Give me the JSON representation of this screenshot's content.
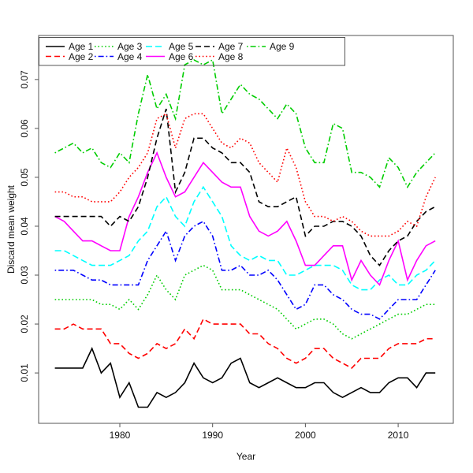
{
  "chart_data": {
    "type": "line",
    "title": "",
    "xlabel": "Year",
    "ylabel": "Discard mean weight",
    "grid": false,
    "legend_position": "top-left",
    "legend_border": true,
    "legend_columns": [
      [
        0,
        1
      ],
      [
        2,
        3
      ],
      [
        4,
        5
      ],
      [
        6,
        7
      ],
      [
        8
      ]
    ],
    "x_ticks": [
      1980,
      1990,
      2000,
      2010
    ],
    "x_tick_labels": [
      "1980",
      "1990",
      "2000",
      "2010"
    ],
    "y_ticks": [
      0.01,
      0.02,
      0.03,
      0.04,
      0.05,
      0.06,
      0.07
    ],
    "y_tick_labels": [
      "0.01",
      "0.02",
      "0.03",
      "0.04",
      "0.05",
      "0.06",
      "0.07"
    ],
    "xlim": [
      1971.25,
      2015.94
    ],
    "ylim": [
      -0.0003,
      0.079
    ],
    "x": [
      1973,
      1974,
      1975,
      1976,
      1977,
      1978,
      1979,
      1980,
      1981,
      1982,
      1983,
      1984,
      1985,
      1986,
      1987,
      1988,
      1989,
      1990,
      1991,
      1992,
      1993,
      1994,
      1995,
      1996,
      1997,
      1998,
      1999,
      2000,
      2001,
      2002,
      2003,
      2004,
      2005,
      2006,
      2007,
      2008,
      2009,
      2010,
      2011,
      2012,
      2013,
      2014
    ],
    "series": [
      {
        "name": "Age 1",
        "color": "#000000",
        "linestyle": "solid",
        "values": [
          0.011,
          0.011,
          0.011,
          0.011,
          0.015,
          0.01,
          0.012,
          0.005,
          0.008,
          0.003,
          0.003,
          0.006,
          0.005,
          0.006,
          0.008,
          0.012,
          0.009,
          0.008,
          0.009,
          0.012,
          0.013,
          0.008,
          0.007,
          0.008,
          0.009,
          0.008,
          0.007,
          0.007,
          0.008,
          0.008,
          0.006,
          0.005,
          0.006,
          0.007,
          0.006,
          0.006,
          0.008,
          0.009,
          0.009,
          0.007,
          0.01,
          0.01
        ]
      },
      {
        "name": "Age 2",
        "color": "#FF0000",
        "linestyle": "dashed",
        "values": [
          0.019,
          0.019,
          0.02,
          0.019,
          0.019,
          0.019,
          0.016,
          0.016,
          0.014,
          0.013,
          0.014,
          0.016,
          0.015,
          0.016,
          0.019,
          0.017,
          0.021,
          0.02,
          0.02,
          0.02,
          0.02,
          0.018,
          0.018,
          0.016,
          0.015,
          0.013,
          0.012,
          0.013,
          0.015,
          0.015,
          0.013,
          0.012,
          0.011,
          0.013,
          0.013,
          0.013,
          0.015,
          0.016,
          0.016,
          0.016,
          0.017,
          0.017
        ]
      },
      {
        "name": "Age 3",
        "color": "#00CD00",
        "linestyle": "dotted",
        "values": [
          0.025,
          0.025,
          0.025,
          0.025,
          0.025,
          0.024,
          0.024,
          0.023,
          0.025,
          0.023,
          0.026,
          0.03,
          0.027,
          0.025,
          0.03,
          0.031,
          0.032,
          0.031,
          0.027,
          0.027,
          0.027,
          0.026,
          0.025,
          0.024,
          0.023,
          0.021,
          0.019,
          0.02,
          0.021,
          0.021,
          0.02,
          0.018,
          0.017,
          0.018,
          0.019,
          0.02,
          0.021,
          0.022,
          0.022,
          0.023,
          0.024,
          0.024
        ]
      },
      {
        "name": "Age 4",
        "color": "#0000FF",
        "linestyle": "dashdot",
        "values": [
          0.031,
          0.031,
          0.031,
          0.03,
          0.029,
          0.029,
          0.028,
          0.028,
          0.028,
          0.028,
          0.033,
          0.036,
          0.039,
          0.033,
          0.038,
          0.04,
          0.041,
          0.038,
          0.031,
          0.031,
          0.032,
          0.03,
          0.03,
          0.031,
          0.029,
          0.026,
          0.023,
          0.024,
          0.028,
          0.028,
          0.026,
          0.025,
          0.023,
          0.022,
          0.022,
          0.021,
          0.023,
          0.025,
          0.025,
          0.025,
          0.028,
          0.031
        ]
      },
      {
        "name": "Age 5",
        "color": "#00FFFF",
        "linestyle": "longdash",
        "values": [
          0.035,
          0.035,
          0.034,
          0.033,
          0.032,
          0.032,
          0.032,
          0.033,
          0.034,
          0.037,
          0.039,
          0.044,
          0.046,
          0.042,
          0.04,
          0.045,
          0.048,
          0.045,
          0.042,
          0.036,
          0.034,
          0.033,
          0.034,
          0.033,
          0.033,
          0.03,
          0.03,
          0.031,
          0.032,
          0.032,
          0.032,
          0.031,
          0.028,
          0.027,
          0.027,
          0.029,
          0.03,
          0.028,
          0.028,
          0.03,
          0.031,
          0.033
        ]
      },
      {
        "name": "Age 6",
        "color": "#FF00FF",
        "linestyle": "solid",
        "values": [
          0.042,
          0.041,
          0.039,
          0.037,
          0.037,
          0.036,
          0.035,
          0.035,
          0.042,
          0.046,
          0.051,
          0.055,
          0.05,
          0.046,
          0.047,
          0.05,
          0.053,
          0.051,
          0.049,
          0.048,
          0.048,
          0.042,
          0.039,
          0.038,
          0.039,
          0.041,
          0.037,
          0.032,
          0.032,
          0.034,
          0.036,
          0.036,
          0.029,
          0.033,
          0.03,
          0.028,
          0.033,
          0.037,
          0.029,
          0.033,
          0.036,
          0.037
        ]
      },
      {
        "name": "Age 7",
        "color": "#000000",
        "linestyle": "dashed",
        "values": [
          0.042,
          0.042,
          0.042,
          0.042,
          0.042,
          0.042,
          0.04,
          0.042,
          0.041,
          0.044,
          0.05,
          0.058,
          0.064,
          0.047,
          0.051,
          0.058,
          0.058,
          0.056,
          0.055,
          0.053,
          0.053,
          0.051,
          0.045,
          0.044,
          0.044,
          0.045,
          0.046,
          0.038,
          0.04,
          0.04,
          0.041,
          0.041,
          0.04,
          0.038,
          0.034,
          0.032,
          0.035,
          0.037,
          0.038,
          0.041,
          0.043,
          0.044
        ]
      },
      {
        "name": "Age 8",
        "color": "#FF0000",
        "linestyle": "dotted",
        "values": [
          0.047,
          0.047,
          0.046,
          0.046,
          0.045,
          0.045,
          0.045,
          0.047,
          0.05,
          0.052,
          0.055,
          0.062,
          0.063,
          0.056,
          0.062,
          0.063,
          0.063,
          0.06,
          0.057,
          0.056,
          0.058,
          0.057,
          0.053,
          0.051,
          0.049,
          0.056,
          0.052,
          0.045,
          0.042,
          0.042,
          0.041,
          0.042,
          0.041,
          0.039,
          0.038,
          0.038,
          0.038,
          0.039,
          0.041,
          0.04,
          0.046,
          0.05
        ]
      },
      {
        "name": "Age 9",
        "color": "#00CD00",
        "linestyle": "dashdot",
        "values": [
          0.055,
          0.056,
          0.057,
          0.055,
          0.056,
          0.053,
          0.052,
          0.055,
          0.053,
          0.063,
          0.071,
          0.064,
          0.067,
          0.062,
          0.073,
          0.074,
          0.073,
          0.074,
          0.063,
          0.066,
          0.069,
          0.067,
          0.066,
          0.064,
          0.062,
          0.065,
          0.063,
          0.056,
          0.053,
          0.053,
          0.061,
          0.06,
          0.051,
          0.051,
          0.05,
          0.048,
          0.054,
          0.052,
          0.048,
          0.051,
          0.053,
          0.055
        ]
      }
    ]
  }
}
